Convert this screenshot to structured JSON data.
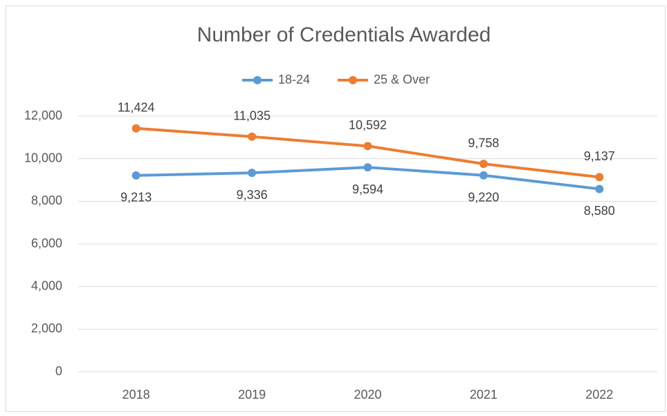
{
  "chart_data": {
    "type": "line",
    "title": "Number of Credentials Awarded",
    "categories": [
      "2018",
      "2019",
      "2020",
      "2021",
      "2022"
    ],
    "series": [
      {
        "name": "18-24",
        "color": "#5b9bd5",
        "values": [
          9213,
          9336,
          9594,
          9220,
          8580
        ],
        "value_labels": [
          "9,213",
          "9,336",
          "9,594",
          "9,220",
          "8,580"
        ]
      },
      {
        "name": "25 & Over",
        "color": "#ed7d31",
        "values": [
          11424,
          11035,
          10592,
          9758,
          9137
        ],
        "value_labels": [
          "11,424",
          "11,035",
          "10,592",
          "9,758",
          "9,137"
        ]
      }
    ],
    "ylim": [
      0,
      12000
    ],
    "yticks": [
      0,
      {
        "value": 2000,
        "label": "2,000"
      },
      {
        "value": 4000,
        "label": "4,000"
      },
      {
        "value": 6000,
        "label": "6,000"
      },
      {
        "value": 8000,
        "label": "8,000"
      },
      {
        "value": 10000,
        "label": "10,000"
      },
      {
        "value": 12000,
        "label": "12,000"
      }
    ],
    "grid": true,
    "legend": "top"
  }
}
